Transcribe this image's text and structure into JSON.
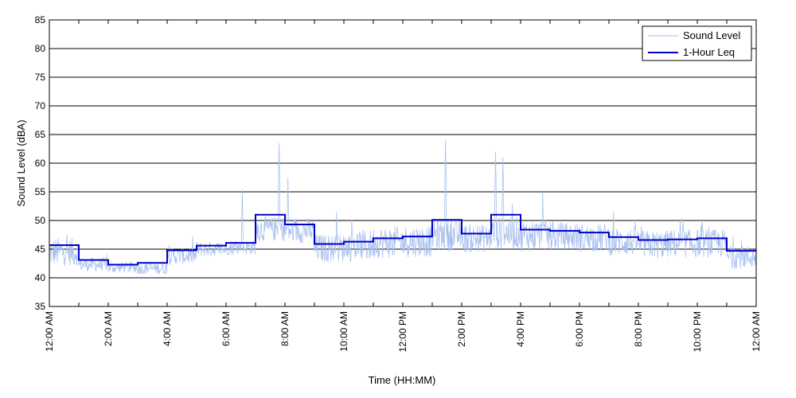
{
  "chart_data": {
    "type": "line",
    "xlabel": "Time (HH:MM)",
    "ylabel": "Sound Level (dBA)",
    "ylim": [
      35,
      85
    ],
    "yticks": [
      35,
      40,
      45,
      50,
      55,
      60,
      65,
      70,
      75,
      80,
      85
    ],
    "xlim": [
      0,
      24
    ],
    "xticks": [
      {
        "hour": 0,
        "label": "12:00 AM"
      },
      {
        "hour": 2,
        "label": "2:00 AM"
      },
      {
        "hour": 4,
        "label": "4:00 AM"
      },
      {
        "hour": 6,
        "label": "6:00 AM"
      },
      {
        "hour": 8,
        "label": "8:00 AM"
      },
      {
        "hour": 10,
        "label": "10:00 AM"
      },
      {
        "hour": 12,
        "label": "12:00 PM"
      },
      {
        "hour": 14,
        "label": "2:00 PM"
      },
      {
        "hour": 16,
        "label": "4:00 PM"
      },
      {
        "hour": 18,
        "label": "6:00 PM"
      },
      {
        "hour": 20,
        "label": "8:00 PM"
      },
      {
        "hour": 22,
        "label": "10:00 PM"
      },
      {
        "hour": 24,
        "label": "12:00 AM"
      }
    ],
    "grid": "horizontal",
    "legend_position": "top-right",
    "series": [
      {
        "name": "Sound Level",
        "color": "#a9c0ef",
        "style": "thin-line",
        "hourly_base": [
          44.5,
          42.3,
          41.8,
          41.6,
          43.8,
          45.0,
          45.3,
          48.5,
          48.2,
          45.2,
          45.6,
          46.2,
          46.4,
          47.5,
          46.9,
          47.8,
          47.4,
          47.2,
          47.0,
          46.3,
          45.8,
          46.0,
          46.0,
          43.6
        ],
        "hourly_spread": [
          2.5,
          1.2,
          1.0,
          1.0,
          1.5,
          1.3,
          1.3,
          2.2,
          2.2,
          2.5,
          2.8,
          2.8,
          2.8,
          2.8,
          2.5,
          2.8,
          2.8,
          2.5,
          2.5,
          2.5,
          2.5,
          2.5,
          2.5,
          2.0
        ],
        "peaks": [
          {
            "hour": 6.55,
            "value": 55.5
          },
          {
            "hour": 7.8,
            "value": 63.5
          },
          {
            "hour": 8.1,
            "value": 57.5
          },
          {
            "hour": 9.75,
            "value": 51.5
          },
          {
            "hour": 13.45,
            "value": 64.0
          },
          {
            "hour": 15.15,
            "value": 62.0
          },
          {
            "hour": 15.4,
            "value": 61.0
          },
          {
            "hour": 16.75,
            "value": 55.0
          }
        ]
      },
      {
        "name": "1-Hour Leq",
        "color": "#0000cc",
        "style": "step",
        "values": [
          45.7,
          43.1,
          42.3,
          42.6,
          44.8,
          45.6,
          46.1,
          51.0,
          49.3,
          45.9,
          46.3,
          46.9,
          47.2,
          50.1,
          47.7,
          51.0,
          48.4,
          48.2,
          47.9,
          47.1,
          46.6,
          46.7,
          46.9,
          44.7
        ]
      }
    ]
  }
}
